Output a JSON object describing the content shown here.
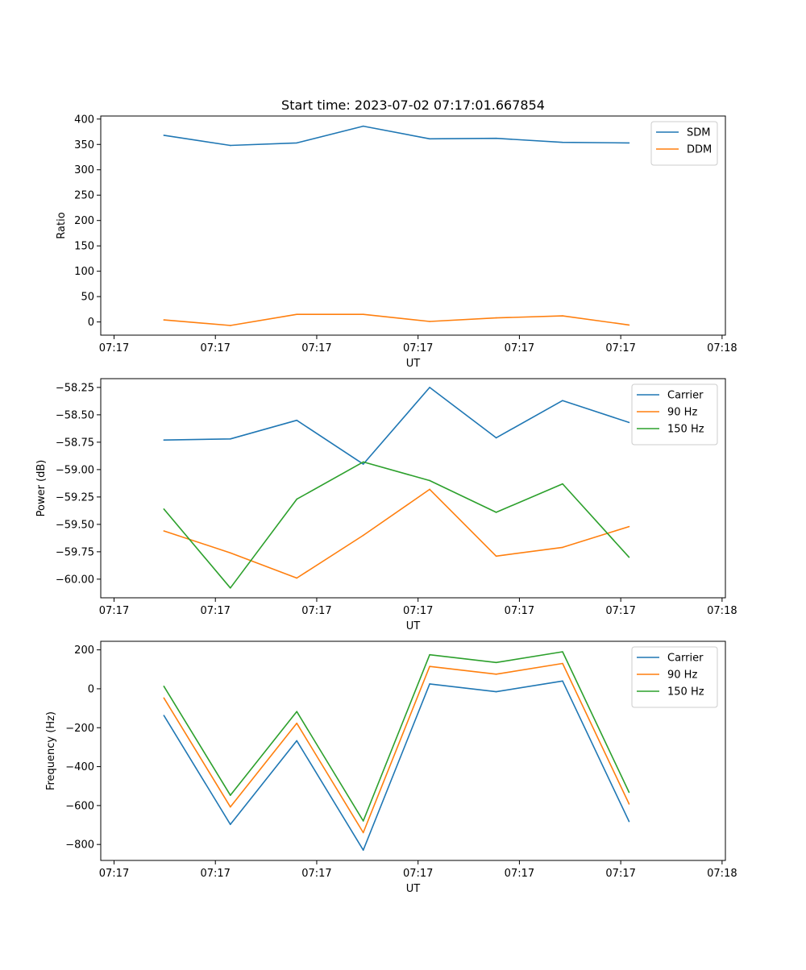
{
  "figure_title": "Start time: 2023-07-02 07:17:01.667854",
  "colors": {
    "blue": "#1f77b4",
    "orange": "#ff7f0e",
    "green": "#2ca02c"
  },
  "chart_data": [
    {
      "type": "line",
      "title": "Start time: 2023-07-02 07:17:01.667854",
      "xlabel": "UT",
      "ylabel": "Ratio",
      "x": [
        0.75,
        1.75,
        2.75,
        3.75,
        4.75,
        5.75,
        6.75,
        7.75
      ],
      "xlim": [
        -0.2,
        9.2
      ],
      "x_ticks": [
        0,
        1.525,
        3.05,
        4.575,
        6.1,
        7.625,
        9.15
      ],
      "x_tick_labels": [
        "07:17",
        "07:17",
        "07:17",
        "07:17",
        "07:17",
        "07:17",
        "07:18"
      ],
      "ylim": [
        -26,
        406
      ],
      "y_ticks": [
        0,
        50,
        100,
        150,
        200,
        250,
        300,
        350,
        400
      ],
      "y_tick_labels": [
        "0",
        "50",
        "100",
        "150",
        "200",
        "250",
        "300",
        "350",
        "400"
      ],
      "legend_position": "top-right",
      "series": [
        {
          "name": "SDM",
          "color": "#1f77b4",
          "values": [
            368,
            348,
            353,
            386,
            361,
            362,
            354,
            353
          ]
        },
        {
          "name": "DDM",
          "color": "#ff7f0e",
          "values": [
            4,
            -7,
            15,
            15,
            1,
            8,
            12,
            -6
          ]
        }
      ]
    },
    {
      "type": "line",
      "title": "",
      "xlabel": "UT",
      "ylabel": "Power (dB)",
      "x": [
        0.75,
        1.75,
        2.75,
        3.75,
        4.75,
        5.75,
        6.75,
        7.75
      ],
      "xlim": [
        -0.2,
        9.2
      ],
      "x_ticks": [
        0,
        1.525,
        3.05,
        4.575,
        6.1,
        7.625,
        9.15
      ],
      "x_tick_labels": [
        "07:17",
        "07:17",
        "07:17",
        "07:17",
        "07:17",
        "07:17",
        "07:18"
      ],
      "ylim": [
        -60.17,
        -58.17
      ],
      "y_ticks": [
        -60.0,
        -59.75,
        -59.5,
        -59.25,
        -59.0,
        -58.75,
        -58.5,
        -58.25
      ],
      "y_tick_labels": [
        "−60.00",
        "−59.75",
        "−59.50",
        "−59.25",
        "−59.00",
        "−58.75",
        "−58.50",
        "−58.25"
      ],
      "legend_position": "top-right",
      "series": [
        {
          "name": "Carrier",
          "color": "#1f77b4",
          "values": [
            -58.73,
            -58.72,
            -58.55,
            -58.95,
            -58.25,
            -58.71,
            -58.37,
            -58.57
          ]
        },
        {
          "name": "90 Hz",
          "color": "#ff7f0e",
          "values": [
            -59.56,
            -59.76,
            -59.99,
            -59.6,
            -59.18,
            -59.79,
            -59.71,
            -59.52
          ]
        },
        {
          "name": "150 Hz",
          "color": "#2ca02c",
          "values": [
            -59.36,
            -60.08,
            -59.27,
            -58.93,
            -59.1,
            -59.39,
            -59.13,
            -59.8
          ]
        }
      ]
    },
    {
      "type": "line",
      "title": "",
      "xlabel": "UT",
      "ylabel": "Frequency (Hz)",
      "x": [
        0.75,
        1.75,
        2.75,
        3.75,
        4.75,
        5.75,
        6.75,
        7.75
      ],
      "xlim": [
        -0.2,
        9.2
      ],
      "x_ticks": [
        0,
        1.525,
        3.05,
        4.575,
        6.1,
        7.625,
        9.15
      ],
      "x_tick_labels": [
        "07:17",
        "07:17",
        "07:17",
        "07:17",
        "07:17",
        "07:17",
        "07:18"
      ],
      "ylim": [
        -882,
        244
      ],
      "y_ticks": [
        -800,
        -600,
        -400,
        -200,
        0,
        200
      ],
      "y_tick_labels": [
        "−800",
        "−600",
        "−400",
        "−200",
        "0",
        "200"
      ],
      "legend_position": "top-right",
      "series": [
        {
          "name": "Carrier",
          "color": "#1f77b4",
          "values": [
            -137,
            -697,
            -267,
            -829,
            25,
            -15,
            40,
            -682
          ]
        },
        {
          "name": "90 Hz",
          "color": "#ff7f0e",
          "values": [
            -47,
            -607,
            -177,
            -739,
            115,
            75,
            130,
            -592
          ]
        },
        {
          "name": "150 Hz",
          "color": "#2ca02c",
          "values": [
            13,
            -547,
            -117,
            -679,
            175,
            135,
            190,
            -532
          ]
        }
      ]
    }
  ]
}
